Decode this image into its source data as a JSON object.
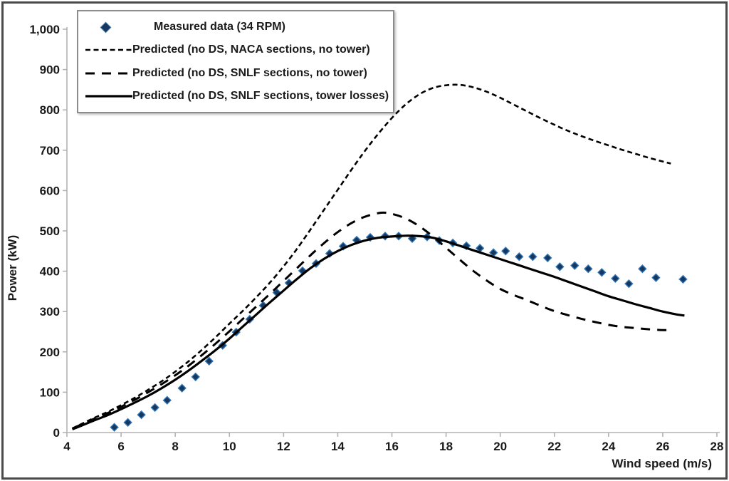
{
  "chart_data": {
    "type": "line",
    "title": "",
    "xlabel": "Wind speed (m/s)",
    "ylabel": "Power (kW)",
    "xlim": [
      4,
      28
    ],
    "ylim": [
      0,
      1000
    ],
    "xticks": [
      4,
      6,
      8,
      10,
      12,
      14,
      16,
      18,
      20,
      22,
      24,
      26,
      28
    ],
    "yticks": [
      0,
      100,
      200,
      300,
      400,
      500,
      600,
      700,
      800,
      900,
      1000
    ],
    "ytick_labels": [
      "0",
      "100",
      "200",
      "300",
      "400",
      "500",
      "600",
      "700",
      "800",
      "900",
      "1,000"
    ],
    "grid": false,
    "legend_position": "top-left",
    "axis_color": "#b3b3b3",
    "line_color": "#000000",
    "marker_fill": "#17375e",
    "marker_stroke": "#2e75b6",
    "series": [
      {
        "name": "Measured data (34 RPM)",
        "kind": "scatter",
        "marker": "diamond",
        "points": [
          [
            5.75,
            13
          ],
          [
            6.25,
            25
          ],
          [
            6.75,
            44
          ],
          [
            7.25,
            62
          ],
          [
            7.7,
            80
          ],
          [
            8.25,
            110
          ],
          [
            8.75,
            138
          ],
          [
            9.25,
            177
          ],
          [
            9.75,
            216
          ],
          [
            10.25,
            249
          ],
          [
            10.75,
            281
          ],
          [
            11.25,
            315
          ],
          [
            11.75,
            347
          ],
          [
            12.2,
            371
          ],
          [
            12.7,
            401
          ],
          [
            13.2,
            419
          ],
          [
            13.7,
            444
          ],
          [
            14.2,
            462
          ],
          [
            14.7,
            477
          ],
          [
            15.2,
            484
          ],
          [
            15.75,
            487
          ],
          [
            16.25,
            487
          ],
          [
            16.75,
            481
          ],
          [
            17.3,
            485
          ],
          [
            17.75,
            476
          ],
          [
            18.25,
            470
          ],
          [
            18.75,
            463
          ],
          [
            19.25,
            457
          ],
          [
            19.75,
            446
          ],
          [
            20.2,
            450
          ],
          [
            20.7,
            436
          ],
          [
            21.2,
            436
          ],
          [
            21.75,
            433
          ],
          [
            22.2,
            411
          ],
          [
            22.75,
            414
          ],
          [
            23.25,
            406
          ],
          [
            23.75,
            397
          ],
          [
            24.25,
            382
          ],
          [
            24.75,
            369
          ],
          [
            25.25,
            406
          ],
          [
            25.75,
            384
          ],
          [
            26.75,
            380
          ]
        ]
      },
      {
        "name": "Predicted (no DS, NACA sections, no tower)",
        "kind": "line",
        "dash": "fine",
        "points": [
          [
            4.2,
            10
          ],
          [
            4.5,
            20
          ],
          [
            5,
            36
          ],
          [
            5.5,
            51
          ],
          [
            6,
            68
          ],
          [
            6.5,
            86
          ],
          [
            7,
            106
          ],
          [
            7.5,
            127
          ],
          [
            8,
            151
          ],
          [
            8.5,
            177
          ],
          [
            9,
            206
          ],
          [
            9.5,
            237
          ],
          [
            10,
            270
          ],
          [
            10.5,
            302
          ],
          [
            11,
            336
          ],
          [
            11.5,
            372
          ],
          [
            12,
            412
          ],
          [
            12.5,
            456
          ],
          [
            13,
            504
          ],
          [
            13.5,
            553
          ],
          [
            14,
            602
          ],
          [
            14.5,
            651
          ],
          [
            15,
            698
          ],
          [
            15.5,
            741
          ],
          [
            16,
            780
          ],
          [
            16.5,
            813
          ],
          [
            17,
            838
          ],
          [
            17.5,
            854
          ],
          [
            18,
            861
          ],
          [
            18.5,
            862
          ],
          [
            19,
            856
          ],
          [
            19.5,
            845
          ],
          [
            20,
            830
          ],
          [
            20.5,
            813
          ],
          [
            21,
            796
          ],
          [
            21.5,
            779
          ],
          [
            22,
            763
          ],
          [
            22.5,
            748
          ],
          [
            23,
            735
          ],
          [
            23.5,
            723
          ],
          [
            24,
            712
          ],
          [
            24.5,
            701
          ],
          [
            25,
            691
          ],
          [
            25.5,
            681
          ],
          [
            26,
            672
          ],
          [
            26.3,
            667
          ]
        ]
      },
      {
        "name": "Predicted (no DS, SNLF sections, no tower)",
        "kind": "line",
        "dash": "long",
        "points": [
          [
            4.2,
            10
          ],
          [
            4.5,
            19
          ],
          [
            5,
            34
          ],
          [
            5.5,
            48
          ],
          [
            6,
            64
          ],
          [
            6.5,
            81
          ],
          [
            7,
            100
          ],
          [
            7.5,
            120
          ],
          [
            8,
            142
          ],
          [
            8.5,
            166
          ],
          [
            9,
            193
          ],
          [
            9.5,
            221
          ],
          [
            10,
            251
          ],
          [
            10.5,
            282
          ],
          [
            11,
            313
          ],
          [
            11.5,
            344
          ],
          [
            12,
            376
          ],
          [
            12.5,
            408
          ],
          [
            13,
            440
          ],
          [
            13.5,
            470
          ],
          [
            14,
            497
          ],
          [
            14.5,
            519
          ],
          [
            15,
            535
          ],
          [
            15.6,
            545
          ],
          [
            16,
            542
          ],
          [
            16.5,
            531
          ],
          [
            17,
            512
          ],
          [
            17.5,
            487
          ],
          [
            18,
            458
          ],
          [
            18.5,
            429
          ],
          [
            19,
            401
          ],
          [
            19.5,
            377
          ],
          [
            20,
            356
          ],
          [
            20.5,
            341
          ],
          [
            21,
            328
          ],
          [
            21.5,
            314
          ],
          [
            22,
            301
          ],
          [
            22.5,
            291
          ],
          [
            23,
            282
          ],
          [
            23.5,
            274
          ],
          [
            24,
            267
          ],
          [
            24.5,
            262
          ],
          [
            25,
            259
          ],
          [
            25.5,
            256
          ],
          [
            26,
            254
          ],
          [
            26.4,
            254
          ]
        ]
      },
      {
        "name": "Predicted (no DS, SNLF sections, tower losses)",
        "kind": "line",
        "dash": "solid",
        "points": [
          [
            4.2,
            8
          ],
          [
            4.5,
            16
          ],
          [
            5,
            30
          ],
          [
            5.5,
            43
          ],
          [
            6,
            58
          ],
          [
            6.5,
            74
          ],
          [
            7,
            91
          ],
          [
            7.5,
            110
          ],
          [
            8,
            131
          ],
          [
            8.5,
            154
          ],
          [
            9,
            179
          ],
          [
            9.5,
            205
          ],
          [
            10,
            233
          ],
          [
            10.5,
            263
          ],
          [
            11,
            293
          ],
          [
            11.5,
            323
          ],
          [
            12,
            352
          ],
          [
            12.5,
            381
          ],
          [
            13,
            408
          ],
          [
            13.5,
            431
          ],
          [
            14,
            450
          ],
          [
            14.5,
            465
          ],
          [
            15,
            476
          ],
          [
            15.5,
            483
          ],
          [
            16,
            486
          ],
          [
            16.5,
            488
          ],
          [
            17,
            487
          ],
          [
            17.5,
            483
          ],
          [
            18,
            474
          ],
          [
            18.5,
            463
          ],
          [
            19,
            452
          ],
          [
            19.5,
            441
          ],
          [
            20,
            430
          ],
          [
            20.5,
            419
          ],
          [
            21,
            408
          ],
          [
            21.5,
            397
          ],
          [
            22,
            386
          ],
          [
            22.5,
            374
          ],
          [
            23,
            362
          ],
          [
            23.5,
            350
          ],
          [
            24,
            338
          ],
          [
            24.5,
            328
          ],
          [
            25,
            318
          ],
          [
            25.5,
            309
          ],
          [
            26,
            300
          ],
          [
            26.5,
            293
          ],
          [
            26.8,
            290
          ]
        ]
      }
    ]
  }
}
